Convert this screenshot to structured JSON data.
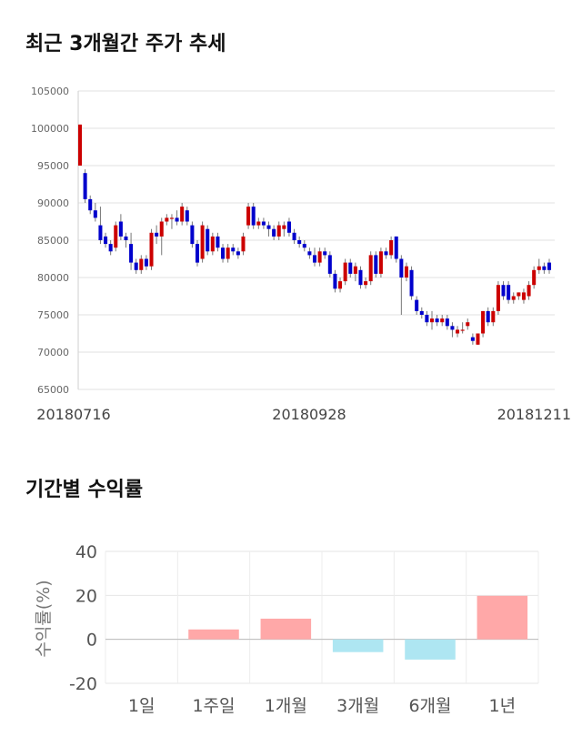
{
  "section1": {
    "title": "최근 3개월간 주가 추세"
  },
  "section2": {
    "title": "기간별 수익률"
  },
  "chart_data": [
    {
      "type": "candlestick",
      "ylim": [
        65000,
        105000
      ],
      "y_ticks": [
        65000,
        70000,
        75000,
        80000,
        85000,
        90000,
        95000,
        100000,
        105000
      ],
      "x_labels": [
        "20180716",
        "20180928",
        "20181211"
      ],
      "grid": true,
      "up_color": "#cc0000",
      "down_color": "#0000cc",
      "candles": [
        [
          95000,
          100500,
          95000,
          100500
        ],
        [
          94000,
          94500,
          90000,
          90500
        ],
        [
          90500,
          91000,
          88500,
          89000
        ],
        [
          89000,
          90000,
          87500,
          88000
        ],
        [
          87000,
          89500,
          84500,
          85000
        ],
        [
          85500,
          86000,
          84000,
          84500
        ],
        [
          84500,
          85000,
          83000,
          83500
        ],
        [
          84000,
          87500,
          83500,
          87000
        ],
        [
          87500,
          88500,
          85000,
          85500
        ],
        [
          85500,
          86000,
          84000,
          85000
        ],
        [
          84500,
          86000,
          81000,
          82000
        ],
        [
          82000,
          82500,
          80500,
          81000
        ],
        [
          81000,
          83000,
          80500,
          82500
        ],
        [
          82500,
          83000,
          81000,
          81500
        ],
        [
          81500,
          86500,
          81000,
          86000
        ],
        [
          86000,
          87000,
          84500,
          85500
        ],
        [
          85500,
          88000,
          83000,
          87500
        ],
        [
          87500,
          88500,
          87000,
          88000
        ],
        [
          88000,
          88500,
          86500,
          88000
        ],
        [
          88000,
          89000,
          87000,
          87500
        ],
        [
          87500,
          90000,
          87000,
          89500
        ],
        [
          89000,
          89500,
          87000,
          87500
        ],
        [
          87000,
          87500,
          84000,
          84500
        ],
        [
          84500,
          85000,
          81500,
          82000
        ],
        [
          82500,
          87500,
          82000,
          87000
        ],
        [
          86500,
          87000,
          83000,
          83500
        ],
        [
          83500,
          86000,
          83000,
          85500
        ],
        [
          85500,
          86000,
          83500,
          84000
        ],
        [
          84000,
          84500,
          82000,
          82500
        ],
        [
          82500,
          84500,
          82000,
          84000
        ],
        [
          84000,
          84500,
          83000,
          83500
        ],
        [
          83500,
          84000,
          82500,
          83000
        ],
        [
          83500,
          86000,
          83000,
          85500
        ],
        [
          87000,
          90000,
          86500,
          89500
        ],
        [
          89500,
          90000,
          86500,
          87000
        ],
        [
          87000,
          88000,
          86500,
          87500
        ],
        [
          87500,
          88000,
          86500,
          87000
        ],
        [
          87000,
          87500,
          85500,
          86500
        ],
        [
          86500,
          87000,
          85000,
          85500
        ],
        [
          85500,
          87500,
          85000,
          87000
        ],
        [
          86500,
          87500,
          85500,
          87000
        ],
        [
          87500,
          88000,
          85500,
          86000
        ],
        [
          86000,
          86500,
          84500,
          85000
        ],
        [
          85000,
          85500,
          84000,
          84500
        ],
        [
          84500,
          85000,
          83500,
          84000
        ],
        [
          83500,
          84000,
          82500,
          83000
        ],
        [
          83000,
          84000,
          81500,
          82000
        ],
        [
          82000,
          84000,
          81500,
          83500
        ],
        [
          83500,
          84000,
          82500,
          83000
        ],
        [
          83000,
          83500,
          80000,
          80500
        ],
        [
          80500,
          81000,
          78000,
          78500
        ],
        [
          78500,
          80000,
          78000,
          79500
        ],
        [
          79500,
          82500,
          79000,
          82000
        ],
        [
          82000,
          82500,
          80000,
          80500
        ],
        [
          80500,
          82000,
          79500,
          81500
        ],
        [
          81000,
          81500,
          78500,
          79000
        ],
        [
          79000,
          80000,
          78500,
          79500
        ],
        [
          79500,
          83500,
          79000,
          83000
        ],
        [
          83000,
          83500,
          80000,
          80500
        ],
        [
          80500,
          84000,
          80000,
          83500
        ],
        [
          83500,
          84000,
          82500,
          83000
        ],
        [
          83000,
          85500,
          82500,
          85000
        ],
        [
          85500,
          85500,
          82000,
          82500
        ],
        [
          82500,
          83000,
          75000,
          80000
        ],
        [
          80000,
          82000,
          79500,
          81500
        ],
        [
          81000,
          81500,
          77000,
          77500
        ],
        [
          77000,
          77500,
          75000,
          75500
        ],
        [
          75500,
          76000,
          74500,
          75000
        ],
        [
          75000,
          75500,
          73500,
          74000
        ],
        [
          74000,
          75500,
          73000,
          74500
        ],
        [
          74500,
          75000,
          73500,
          74000
        ],
        [
          74000,
          75000,
          73500,
          74500
        ],
        [
          74500,
          75000,
          73000,
          73500
        ],
        [
          73500,
          74000,
          72000,
          73000
        ],
        [
          72500,
          73500,
          72000,
          73000
        ],
        [
          73000,
          74000,
          72500,
          73000
        ],
        [
          73500,
          74500,
          73000,
          74000
        ],
        [
          72000,
          72500,
          71000,
          71500
        ],
        [
          71000,
          72500,
          71000,
          72500
        ],
        [
          72500,
          75500,
          72000,
          75500
        ],
        [
          75500,
          76000,
          73500,
          74000
        ],
        [
          74000,
          76000,
          73500,
          75500
        ],
        [
          75500,
          79500,
          75000,
          79000
        ],
        [
          79000,
          79500,
          77000,
          77500
        ],
        [
          79000,
          79500,
          76500,
          77000
        ],
        [
          77000,
          78000,
          76500,
          77500
        ],
        [
          77500,
          78000,
          77000,
          78000
        ],
        [
          77000,
          78500,
          76500,
          78000
        ],
        [
          77500,
          79500,
          77000,
          79000
        ],
        [
          79000,
          81500,
          78500,
          81000
        ],
        [
          81000,
          82500,
          80500,
          81500
        ],
        [
          81500,
          82000,
          80500,
          81000
        ],
        [
          82000,
          82500,
          80500,
          81000
        ]
      ]
    },
    {
      "type": "bar",
      "ylabel": "수익률(%)",
      "categories": [
        "1일",
        "1주일",
        "1개월",
        "3개월",
        "6개월",
        "1년"
      ],
      "values": [
        0,
        4.5,
        9.4,
        -5.8,
        -9.2,
        19.8
      ],
      "ylim": [
        -20,
        40
      ],
      "y_ticks": [
        40,
        20,
        0,
        -20
      ],
      "grid": true,
      "positive_color": "#ffa8a8",
      "negative_color": "#aee6f2"
    }
  ]
}
